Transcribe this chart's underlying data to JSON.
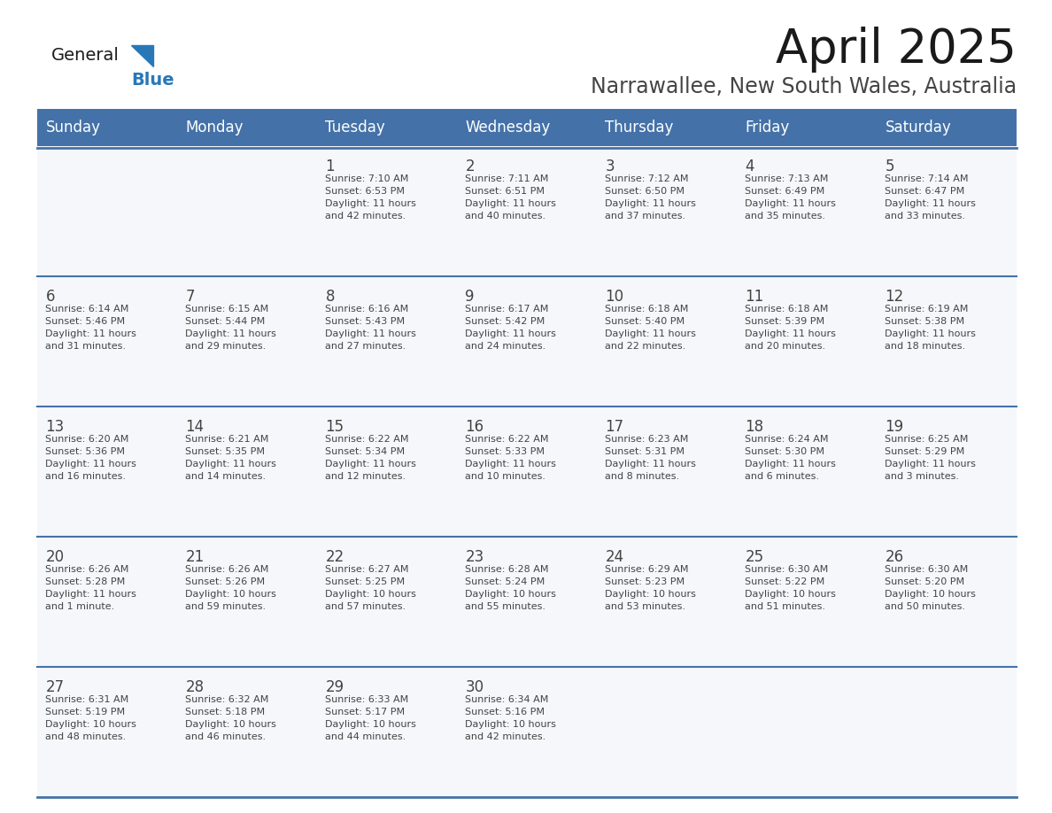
{
  "title": "April 2025",
  "subtitle": "Narrawallee, New South Wales, Australia",
  "days_of_week": [
    "Sunday",
    "Monday",
    "Tuesday",
    "Wednesday",
    "Thursday",
    "Friday",
    "Saturday"
  ],
  "header_bg": "#4472a8",
  "header_text": "#ffffff",
  "cell_bg": "#f5f7fa",
  "text_color": "#444444",
  "title_color": "#1a1a1a",
  "subtitle_color": "#444444",
  "logo_black": "#1a1a1a",
  "logo_blue": "#2878b8",
  "line_color": "#4472a8",
  "weeks": [
    [
      {
        "day": "",
        "info": ""
      },
      {
        "day": "",
        "info": ""
      },
      {
        "day": "1",
        "info": "Sunrise: 7:10 AM\nSunset: 6:53 PM\nDaylight: 11 hours\nand 42 minutes."
      },
      {
        "day": "2",
        "info": "Sunrise: 7:11 AM\nSunset: 6:51 PM\nDaylight: 11 hours\nand 40 minutes."
      },
      {
        "day": "3",
        "info": "Sunrise: 7:12 AM\nSunset: 6:50 PM\nDaylight: 11 hours\nand 37 minutes."
      },
      {
        "day": "4",
        "info": "Sunrise: 7:13 AM\nSunset: 6:49 PM\nDaylight: 11 hours\nand 35 minutes."
      },
      {
        "day": "5",
        "info": "Sunrise: 7:14 AM\nSunset: 6:47 PM\nDaylight: 11 hours\nand 33 minutes."
      }
    ],
    [
      {
        "day": "6",
        "info": "Sunrise: 6:14 AM\nSunset: 5:46 PM\nDaylight: 11 hours\nand 31 minutes."
      },
      {
        "day": "7",
        "info": "Sunrise: 6:15 AM\nSunset: 5:44 PM\nDaylight: 11 hours\nand 29 minutes."
      },
      {
        "day": "8",
        "info": "Sunrise: 6:16 AM\nSunset: 5:43 PM\nDaylight: 11 hours\nand 27 minutes."
      },
      {
        "day": "9",
        "info": "Sunrise: 6:17 AM\nSunset: 5:42 PM\nDaylight: 11 hours\nand 24 minutes."
      },
      {
        "day": "10",
        "info": "Sunrise: 6:18 AM\nSunset: 5:40 PM\nDaylight: 11 hours\nand 22 minutes."
      },
      {
        "day": "11",
        "info": "Sunrise: 6:18 AM\nSunset: 5:39 PM\nDaylight: 11 hours\nand 20 minutes."
      },
      {
        "day": "12",
        "info": "Sunrise: 6:19 AM\nSunset: 5:38 PM\nDaylight: 11 hours\nand 18 minutes."
      }
    ],
    [
      {
        "day": "13",
        "info": "Sunrise: 6:20 AM\nSunset: 5:36 PM\nDaylight: 11 hours\nand 16 minutes."
      },
      {
        "day": "14",
        "info": "Sunrise: 6:21 AM\nSunset: 5:35 PM\nDaylight: 11 hours\nand 14 minutes."
      },
      {
        "day": "15",
        "info": "Sunrise: 6:22 AM\nSunset: 5:34 PM\nDaylight: 11 hours\nand 12 minutes."
      },
      {
        "day": "16",
        "info": "Sunrise: 6:22 AM\nSunset: 5:33 PM\nDaylight: 11 hours\nand 10 minutes."
      },
      {
        "day": "17",
        "info": "Sunrise: 6:23 AM\nSunset: 5:31 PM\nDaylight: 11 hours\nand 8 minutes."
      },
      {
        "day": "18",
        "info": "Sunrise: 6:24 AM\nSunset: 5:30 PM\nDaylight: 11 hours\nand 6 minutes."
      },
      {
        "day": "19",
        "info": "Sunrise: 6:25 AM\nSunset: 5:29 PM\nDaylight: 11 hours\nand 3 minutes."
      }
    ],
    [
      {
        "day": "20",
        "info": "Sunrise: 6:26 AM\nSunset: 5:28 PM\nDaylight: 11 hours\nand 1 minute."
      },
      {
        "day": "21",
        "info": "Sunrise: 6:26 AM\nSunset: 5:26 PM\nDaylight: 10 hours\nand 59 minutes."
      },
      {
        "day": "22",
        "info": "Sunrise: 6:27 AM\nSunset: 5:25 PM\nDaylight: 10 hours\nand 57 minutes."
      },
      {
        "day": "23",
        "info": "Sunrise: 6:28 AM\nSunset: 5:24 PM\nDaylight: 10 hours\nand 55 minutes."
      },
      {
        "day": "24",
        "info": "Sunrise: 6:29 AM\nSunset: 5:23 PM\nDaylight: 10 hours\nand 53 minutes."
      },
      {
        "day": "25",
        "info": "Sunrise: 6:30 AM\nSunset: 5:22 PM\nDaylight: 10 hours\nand 51 minutes."
      },
      {
        "day": "26",
        "info": "Sunrise: 6:30 AM\nSunset: 5:20 PM\nDaylight: 10 hours\nand 50 minutes."
      }
    ],
    [
      {
        "day": "27",
        "info": "Sunrise: 6:31 AM\nSunset: 5:19 PM\nDaylight: 10 hours\nand 48 minutes."
      },
      {
        "day": "28",
        "info": "Sunrise: 6:32 AM\nSunset: 5:18 PM\nDaylight: 10 hours\nand 46 minutes."
      },
      {
        "day": "29",
        "info": "Sunrise: 6:33 AM\nSunset: 5:17 PM\nDaylight: 10 hours\nand 44 minutes."
      },
      {
        "day": "30",
        "info": "Sunrise: 6:34 AM\nSunset: 5:16 PM\nDaylight: 10 hours\nand 42 minutes."
      },
      {
        "day": "",
        "info": ""
      },
      {
        "day": "",
        "info": ""
      },
      {
        "day": "",
        "info": ""
      }
    ]
  ]
}
